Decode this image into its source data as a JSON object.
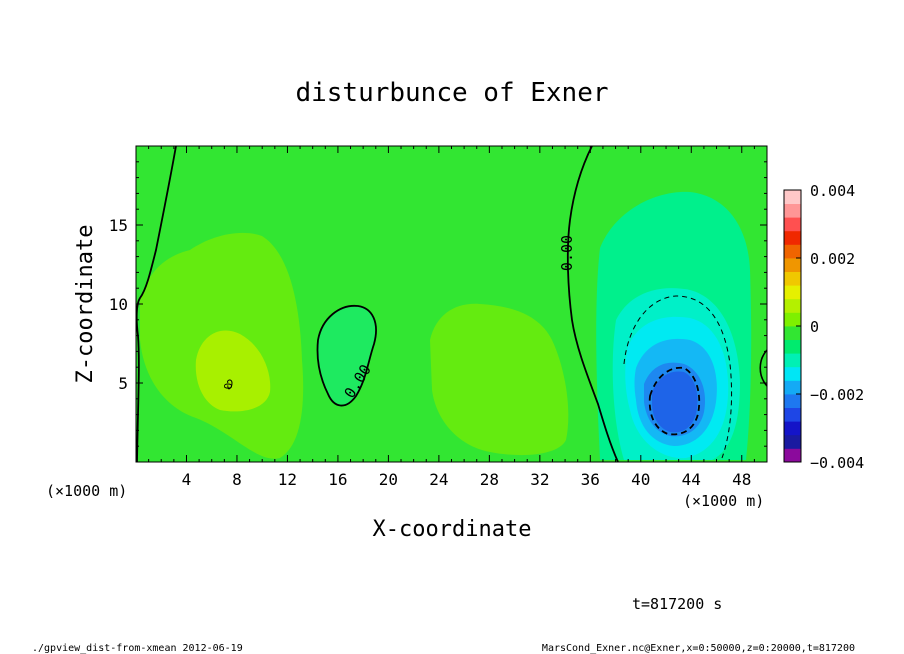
{
  "chart_data": {
    "type": "contour",
    "title": "disturbunce of Exner",
    "xlabel": "X-coordinate",
    "ylabel": "Z-coordinate",
    "x_unit_note": "(×1000 m)",
    "x_unit_note_right": "(×1000 m)",
    "xlim": [
      0,
      50
    ],
    "ylim": [
      0,
      20
    ],
    "xticks": [
      4,
      8,
      12,
      16,
      20,
      24,
      28,
      32,
      36,
      40,
      44,
      48
    ],
    "xtick_labels": [
      "4",
      "8",
      "12",
      "16",
      "20",
      "24",
      "28",
      "32",
      "36",
      "40",
      "44",
      "48"
    ],
    "yticks": [
      5,
      10,
      15
    ],
    "ytick_labels": [
      "5",
      "10",
      "15"
    ],
    "colorbar": {
      "min": -0.004,
      "max": 0.004,
      "ticks": [
        0.004,
        0.002,
        0,
        -0.002,
        -0.004
      ],
      "tick_labels": [
        "0.004",
        "0.002",
        "0",
        "−0.002",
        "−0.004"
      ],
      "colors": [
        "#8b0a9c",
        "#1a1aa0",
        "#1414c8",
        "#1e46e6",
        "#1e78f0",
        "#14aaf5",
        "#00e6f5",
        "#00f0b4",
        "#00eb6e",
        "#32e632",
        "#7ef000",
        "#b4f000",
        "#e6f000",
        "#f0c800",
        "#f09600",
        "#f06400",
        "#f02800",
        "#ff5050",
        "#ff9696",
        "#ffc8c8"
      ]
    },
    "contour_labels": [
      "0.00",
      "0.00",
      "0"
    ],
    "anomalies": [
      {
        "sign": "negative",
        "x_center": 42.5,
        "z_center": 4.5,
        "min_value": -0.0021
      },
      {
        "sign": "positive",
        "x_center": 7,
        "z_center": 5,
        "max_value": 0.0008
      },
      {
        "sign": "positive",
        "x_center": 27,
        "z_center": 5,
        "max_value": 0.0005
      },
      {
        "sign": "negative",
        "x_center": 16.5,
        "z_center": 7,
        "min_value": -0.0001
      }
    ]
  },
  "time_label": "t=817200 s",
  "footer": {
    "left": "./gpview_dist-from-xmean  2012-06-19",
    "right": "MarsCond_Exner.nc@Exner,x=0:50000,z=0:20000,t=817200"
  }
}
